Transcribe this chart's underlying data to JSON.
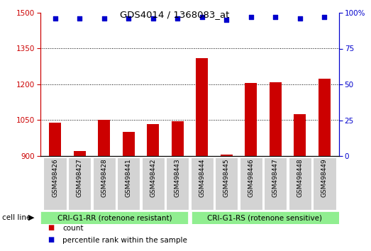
{
  "title": "GDS4014 / 1368083_at",
  "samples": [
    "GSM498426",
    "GSM498427",
    "GSM498428",
    "GSM498441",
    "GSM498442",
    "GSM498443",
    "GSM498444",
    "GSM498445",
    "GSM498446",
    "GSM498447",
    "GSM498448",
    "GSM498449"
  ],
  "counts": [
    1040,
    920,
    1050,
    1000,
    1035,
    1045,
    1310,
    905,
    1205,
    1210,
    1075,
    1225
  ],
  "percentile_ranks": [
    96,
    96,
    96,
    96,
    96,
    96,
    97,
    95,
    97,
    97,
    96,
    97
  ],
  "group1_label": "CRI-G1-RR (rotenone resistant)",
  "group2_label": "CRI-G1-RS (rotenone sensitive)",
  "group1_count": 6,
  "group2_count": 6,
  "ylim_left": [
    900,
    1500
  ],
  "yticks_left": [
    900,
    1050,
    1200,
    1350,
    1500
  ],
  "ylim_right": [
    0,
    100
  ],
  "yticks_right": [
    0,
    25,
    50,
    75,
    100
  ],
  "bar_color": "#cc0000",
  "dot_color": "#0000cc",
  "bar_width": 0.5,
  "group_bg": "#90ee90",
  "tick_bg": "#d3d3d3",
  "legend_count_label": "count",
  "legend_pct_label": "percentile rank within the sample",
  "cell_line_label": "cell line"
}
